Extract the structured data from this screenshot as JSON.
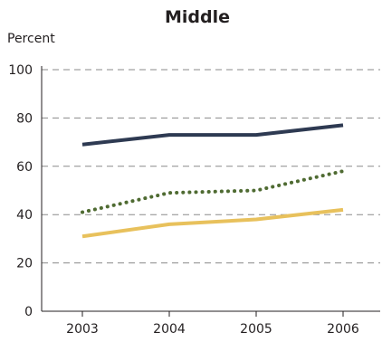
{
  "chart_data": {
    "type": "line",
    "title": "Middle",
    "ylabel": "Percent",
    "xlabel": "",
    "x": [
      "2003",
      "2004",
      "2005",
      "2006"
    ],
    "ylim": [
      0,
      100
    ],
    "yticks": [
      0,
      20,
      40,
      60,
      80,
      100
    ],
    "grid": "horizontal dashed",
    "legend": "none",
    "series": [
      {
        "values": [
          69,
          73,
          73,
          77
        ],
        "color": "#2e3a52",
        "style": "solid"
      },
      {
        "values": [
          41,
          49,
          50,
          58
        ],
        "color": "#4f6b32",
        "style": "dotted"
      },
      {
        "values": [
          31,
          36,
          38,
          42
        ],
        "color": "#e8c15c",
        "style": "solid"
      }
    ]
  }
}
